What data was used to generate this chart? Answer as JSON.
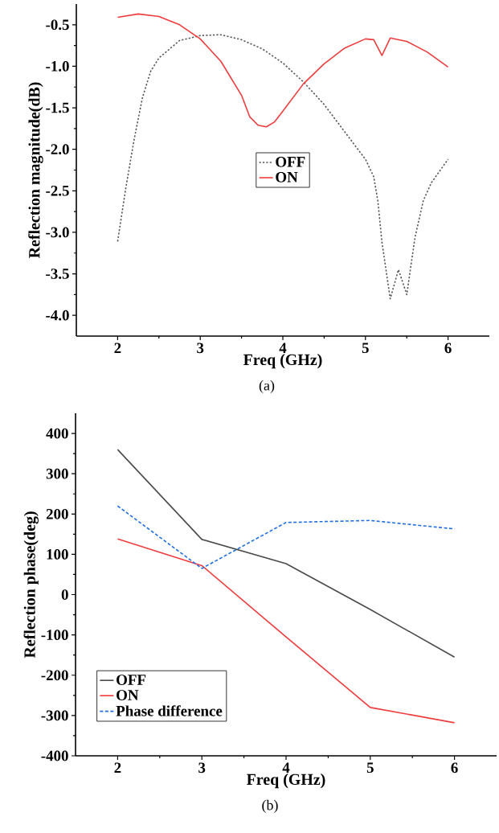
{
  "chart_data": [
    {
      "type": "line",
      "xlabel": "Freq (GHz)",
      "ylabel": "Reflection magnitude(dB)",
      "annotations": [
        "(a)"
      ],
      "xlim": [
        1.5,
        6.5
      ],
      "ylim": [
        -4.25,
        -0.25
      ],
      "xticks": [
        2,
        3,
        4,
        5,
        6
      ],
      "yticks": [
        {
          "value": -4.0,
          "label": "-4.0"
        },
        {
          "value": -3.5,
          "label": "-3.5"
        },
        {
          "value": -3.0,
          "label": "-3.0"
        },
        {
          "value": -2.5,
          "label": "-2.5"
        },
        {
          "value": -2.0,
          "label": "-2.0"
        },
        {
          "value": -1.5,
          "label": "-1.5"
        },
        {
          "value": -1.0,
          "label": "-1.0"
        },
        {
          "value": -0.5,
          "label": "-0.5"
        }
      ],
      "legend": "center",
      "series": [
        {
          "name": "OFF",
          "color": "#555555",
          "line_style": "dotted",
          "x": [
            2.0,
            2.1,
            2.2,
            2.3,
            2.4,
            2.5,
            2.75,
            3.0,
            3.25,
            3.5,
            3.75,
            4.0,
            4.25,
            4.5,
            4.75,
            5.0,
            5.1,
            5.15,
            5.2,
            5.3,
            5.4,
            5.5,
            5.6,
            5.7,
            5.8,
            6.0
          ],
          "values": [
            -3.11,
            -2.46,
            -1.88,
            -1.38,
            -1.06,
            -0.9,
            -0.69,
            -0.63,
            -0.62,
            -0.68,
            -0.79,
            -0.96,
            -1.19,
            -1.46,
            -1.79,
            -2.12,
            -2.33,
            -2.62,
            -3.12,
            -3.8,
            -3.45,
            -3.75,
            -3.06,
            -2.62,
            -2.4,
            -2.12
          ]
        },
        {
          "name": "ON",
          "color": "#f03c3c",
          "line_style": "solid",
          "x": [
            2.0,
            2.25,
            2.5,
            2.75,
            3.0,
            3.25,
            3.5,
            3.6,
            3.7,
            3.8,
            3.9,
            4.0,
            4.25,
            4.5,
            4.75,
            5.0,
            5.1,
            5.2,
            5.3,
            5.5,
            5.75,
            6.0
          ],
          "values": [
            -0.41,
            -0.37,
            -0.4,
            -0.5,
            -0.67,
            -0.94,
            -1.35,
            -1.61,
            -1.71,
            -1.73,
            -1.67,
            -1.54,
            -1.21,
            -0.97,
            -0.78,
            -0.67,
            -0.68,
            -0.87,
            -0.66,
            -0.7,
            -0.83,
            -1.01
          ]
        }
      ]
    },
    {
      "type": "line",
      "xlabel": "Freq (GHz)",
      "ylabel": "Reflection phase(deg)",
      "annotations": [
        "(b)"
      ],
      "xlim": [
        1.5,
        6.5
      ],
      "ylim": [
        -400,
        450
      ],
      "xticks": [
        2,
        3,
        4,
        5,
        6
      ],
      "yticks": [
        -400,
        -300,
        -200,
        -100,
        0,
        100,
        200,
        300,
        400
      ],
      "legend": "bottom left",
      "series": [
        {
          "name": "OFF",
          "color": "#4a4a4a",
          "line_style": "solid",
          "x": [
            2,
            3,
            4,
            5,
            6
          ],
          "values": [
            360,
            137,
            77,
            -37,
            -155
          ]
        },
        {
          "name": "ON",
          "color": "#f03c3c",
          "line_style": "solid",
          "x": [
            2,
            3,
            4,
            5,
            6
          ],
          "values": [
            138,
            72,
            -105,
            -280,
            -318
          ]
        },
        {
          "name": "Phase difference",
          "color": "#1f6fe0",
          "line_style": "dashed",
          "x": [
            2,
            3,
            4,
            5,
            6
          ],
          "values": [
            220,
            65,
            179,
            184,
            163
          ]
        }
      ]
    }
  ]
}
